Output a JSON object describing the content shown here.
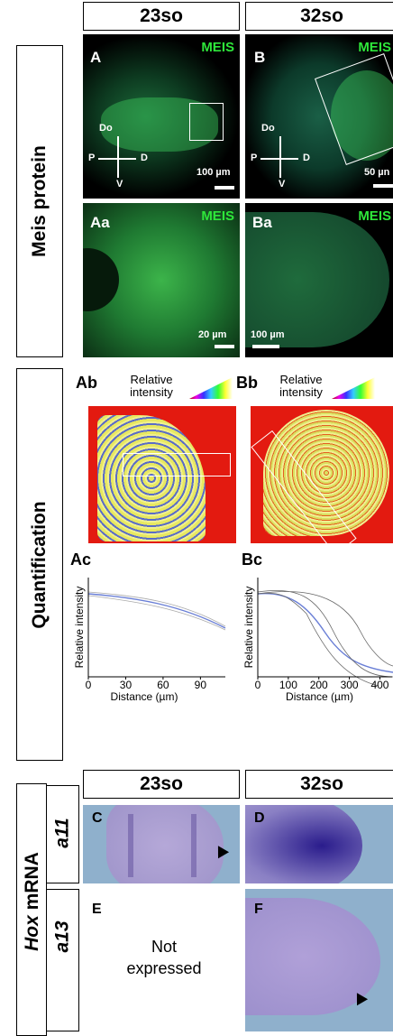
{
  "header": {
    "stages": [
      "23so",
      "32so"
    ],
    "stages_lower": [
      "23so",
      "32so"
    ]
  },
  "row_labels": {
    "meis": "Meis protein",
    "quant": "Quantification",
    "hox_italic": "Hox",
    "hox_rest": "mRNA",
    "genes": [
      "a11",
      "a13"
    ]
  },
  "panels": {
    "A": {
      "letter": "A",
      "stain": "MEIS",
      "scale": "100 µm",
      "axes": {
        "do": "Do",
        "p": "P",
        "d": "D",
        "v": "V"
      }
    },
    "B": {
      "letter": "B",
      "stain": "MEIS",
      "scale": "50 µn",
      "axes": {
        "do": "Do",
        "p": "P",
        "d": "D",
        "v": "V"
      }
    },
    "Aa": {
      "letter": "Aa",
      "stain": "MEIS",
      "scale": "20 µm"
    },
    "Ba": {
      "letter": "Ba",
      "stain": "MEIS",
      "scale": "100 µm"
    },
    "Ab": {
      "letter": "Ab",
      "legend": "Relative intensity"
    },
    "Bb": {
      "letter": "Bb",
      "legend": "Relative intensity"
    },
    "C": {
      "letter": "C"
    },
    "D": {
      "letter": "D"
    },
    "E": {
      "letter": "E",
      "note": "Not expressed"
    },
    "F": {
      "letter": "F"
    }
  },
  "charts": [
    {
      "type": "line",
      "letter": "Ac",
      "ylabel": "Relative intensity",
      "xlabel": "Distance (µm)",
      "xlim": [
        0,
        110
      ],
      "xticks": [
        0,
        30,
        60,
        90
      ]
    },
    {
      "type": "line",
      "letter": "Bc",
      "ylabel": "Relative intensity",
      "xlabel": "Distance (µm)",
      "xlim": [
        0,
        440
      ],
      "xticks": [
        0,
        100,
        200,
        300,
        400
      ]
    }
  ]
}
